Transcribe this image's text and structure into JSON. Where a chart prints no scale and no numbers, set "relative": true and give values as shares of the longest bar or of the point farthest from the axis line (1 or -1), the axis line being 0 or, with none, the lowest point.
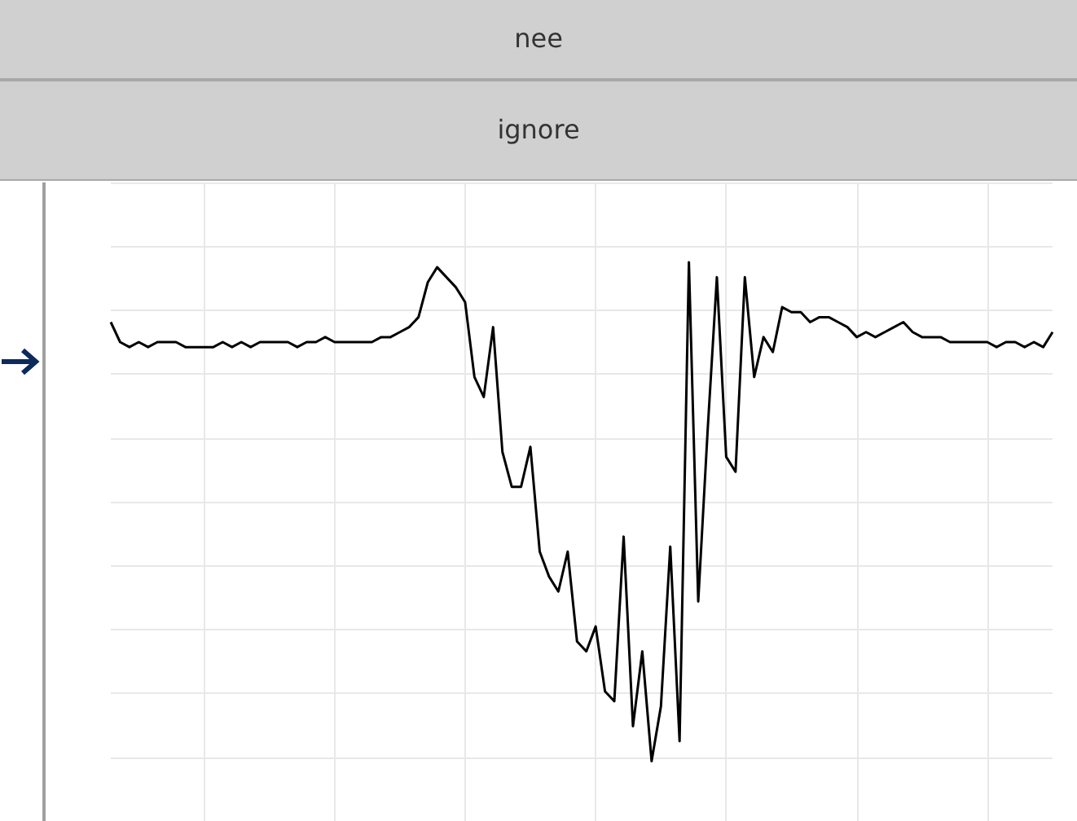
{
  "chart_data": {
    "type": "line",
    "title": "nee",
    "subtitle": "ignore",
    "relative": true,
    "grid": true,
    "line_style": "solid",
    "categories": [
      null,
      null,
      null,
      null,
      null,
      null,
      null,
      null,
      null,
      null,
      null,
      null,
      null,
      null,
      null,
      null,
      null,
      null,
      null,
      null,
      null,
      null,
      null,
      null,
      null,
      null,
      null,
      null,
      null,
      null,
      null,
      null,
      null,
      null,
      null,
      null,
      null,
      null,
      null,
      null,
      null,
      null,
      null,
      null,
      null,
      null,
      null,
      null,
      null,
      null,
      null,
      null,
      null,
      null,
      null,
      null,
      null,
      null,
      null,
      null,
      null,
      null,
      null,
      null,
      null,
      null,
      null,
      null,
      null,
      null,
      null,
      null,
      null,
      null,
      null,
      null,
      null,
      null,
      null,
      null,
      null,
      null,
      null,
      null,
      null,
      null,
      null,
      null,
      null,
      null,
      null,
      null,
      null,
      null,
      null,
      null,
      null,
      null,
      null,
      null,
      null,
      null
    ],
    "series": [
      {
        "color": "#000000",
        "values": [
          0.88,
          0.84,
          0.83,
          0.84,
          0.83,
          0.84,
          0.84,
          0.84,
          0.83,
          0.83,
          0.83,
          0.83,
          0.84,
          0.83,
          0.84,
          0.83,
          0.84,
          0.84,
          0.84,
          0.84,
          0.83,
          0.84,
          0.84,
          0.85,
          0.84,
          0.84,
          0.84,
          0.84,
          0.84,
          0.85,
          0.85,
          0.86,
          0.87,
          0.89,
          0.96,
          0.99,
          0.97,
          0.95,
          0.92,
          0.77,
          0.73,
          0.87,
          0.62,
          0.55,
          0.55,
          0.63,
          0.42,
          0.37,
          0.34,
          0.42,
          0.24,
          0.22,
          0.27,
          0.14,
          0.12,
          0.45,
          0.07,
          0.22,
          0,
          0.11,
          0.43,
          0.04,
          1,
          0.32,
          0.66,
          0.97,
          0.61,
          0.58,
          0.97,
          0.77,
          0.85,
          0.82,
          0.91,
          0.9,
          0.9,
          0.88,
          0.89,
          0.89,
          0.88,
          0.87,
          0.85,
          0.86,
          0.85,
          0.86,
          0.87,
          0.88,
          0.86,
          0.85,
          0.85,
          0.85,
          0.84,
          0.84,
          0.84,
          0.84,
          0.84,
          0.83,
          0.84,
          0.84,
          0.83,
          0.84,
          0.83,
          0.86
        ]
      }
    ]
  }
}
